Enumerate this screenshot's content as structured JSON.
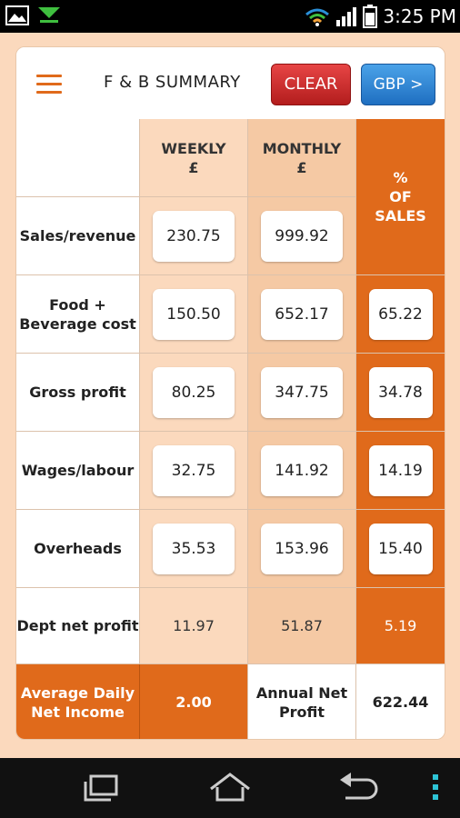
{
  "status_bar": {
    "time": "3:25 PM",
    "icons": [
      "image-icon",
      "download-icon",
      "wifi-icon",
      "signal-icon",
      "battery-icon"
    ]
  },
  "header": {
    "title": "F & B SUMMARY",
    "clear_label": "CLEAR",
    "currency_label": "GBP >"
  },
  "columns": {
    "weekly": "WEEKLY",
    "weekly_unit": "£",
    "monthly": "MONTHLY",
    "monthly_unit": "£",
    "pct_line1": "%",
    "pct_line2": "OF",
    "pct_line3": "SALES"
  },
  "rows": [
    {
      "label": "Sales/revenue",
      "weekly": "230.75",
      "monthly": "999.92",
      "pct": ""
    },
    {
      "label_line1": "Food +",
      "label_line2": "Beverage cost",
      "weekly": "150.50",
      "monthly": "652.17",
      "pct": "65.22"
    },
    {
      "label": "Gross profit",
      "weekly": "80.25",
      "monthly": "347.75",
      "pct": "34.78"
    },
    {
      "label": "Wages/labour",
      "weekly": "32.75",
      "monthly": "141.92",
      "pct": "14.19"
    },
    {
      "label": "Overheads",
      "weekly": "35.53",
      "monthly": "153.96",
      "pct": "15.40"
    },
    {
      "label": "Dept net profit",
      "weekly": "11.97",
      "monthly": "51.87",
      "pct": "5.19"
    }
  ],
  "footer": {
    "avg_label_line1": "Average Daily",
    "avg_label_line2": "Net Income",
    "avg_value": "2.00",
    "annual_label_line1": "Annual Net",
    "annual_label_line2": "Profit",
    "annual_value": "622.44"
  },
  "colors": {
    "accent_orange": "#e06a1b",
    "clear_red": "#d32f2f",
    "currency_blue": "#2f85d6",
    "background": "#fbd9bd"
  },
  "navbar": {
    "icons": [
      "recent-apps-icon",
      "home-icon",
      "back-icon",
      "overflow-menu-icon"
    ]
  }
}
